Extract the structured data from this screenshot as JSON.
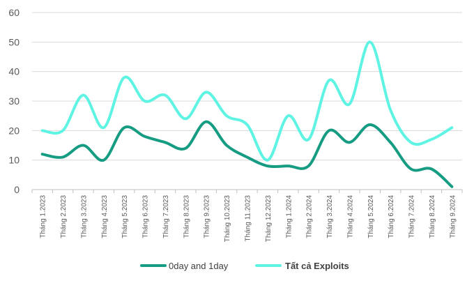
{
  "chart_data": {
    "type": "line",
    "categories": [
      "Tháng 1.2023",
      "Tháng 2.2023",
      "Tháng 3.2023",
      "Tháng 4.2023",
      "Tháng 5.2023",
      "Tháng 6.2023",
      "Tháng 7.2023",
      "Tháng 8.2023",
      "Tháng 9.2023",
      "Tháng 10.2023",
      "Tháng 11.2023",
      "Tháng 12.2023",
      "Tháng 1.2024",
      "Tháng 2.2024",
      "Tháng 3.2024",
      "Tháng 4.2024",
      "Tháng 5.2024",
      "Tháng 6.2024",
      "Tháng 7.2024",
      "Tháng 8.2024",
      "Tháng 9.2024"
    ],
    "series": [
      {
        "name": "0day and 1day",
        "color": "#169C82",
        "values": [
          12,
          11,
          15,
          10,
          21,
          18,
          16,
          14,
          23,
          15,
          11,
          8,
          8,
          8,
          20,
          16,
          22,
          16,
          7,
          7,
          1
        ]
      },
      {
        "name": "Tất cả Exploits",
        "color": "#5FF3E3",
        "values": [
          20,
          20,
          32,
          21,
          38,
          30,
          32,
          24,
          33,
          25,
          22,
          10,
          25,
          17,
          37,
          29,
          50,
          27,
          16,
          17,
          21
        ]
      }
    ],
    "ylim": [
      0,
      60
    ],
    "yticks": [
      0,
      10,
      20,
      30,
      40,
      50,
      60
    ],
    "grid": true,
    "legend_position": "bottom",
    "xlabel": "",
    "ylabel": "",
    "title": ""
  },
  "colors": {
    "grid": "#D9D9D9",
    "axis": "#BFBFBF",
    "text": "#595959"
  }
}
